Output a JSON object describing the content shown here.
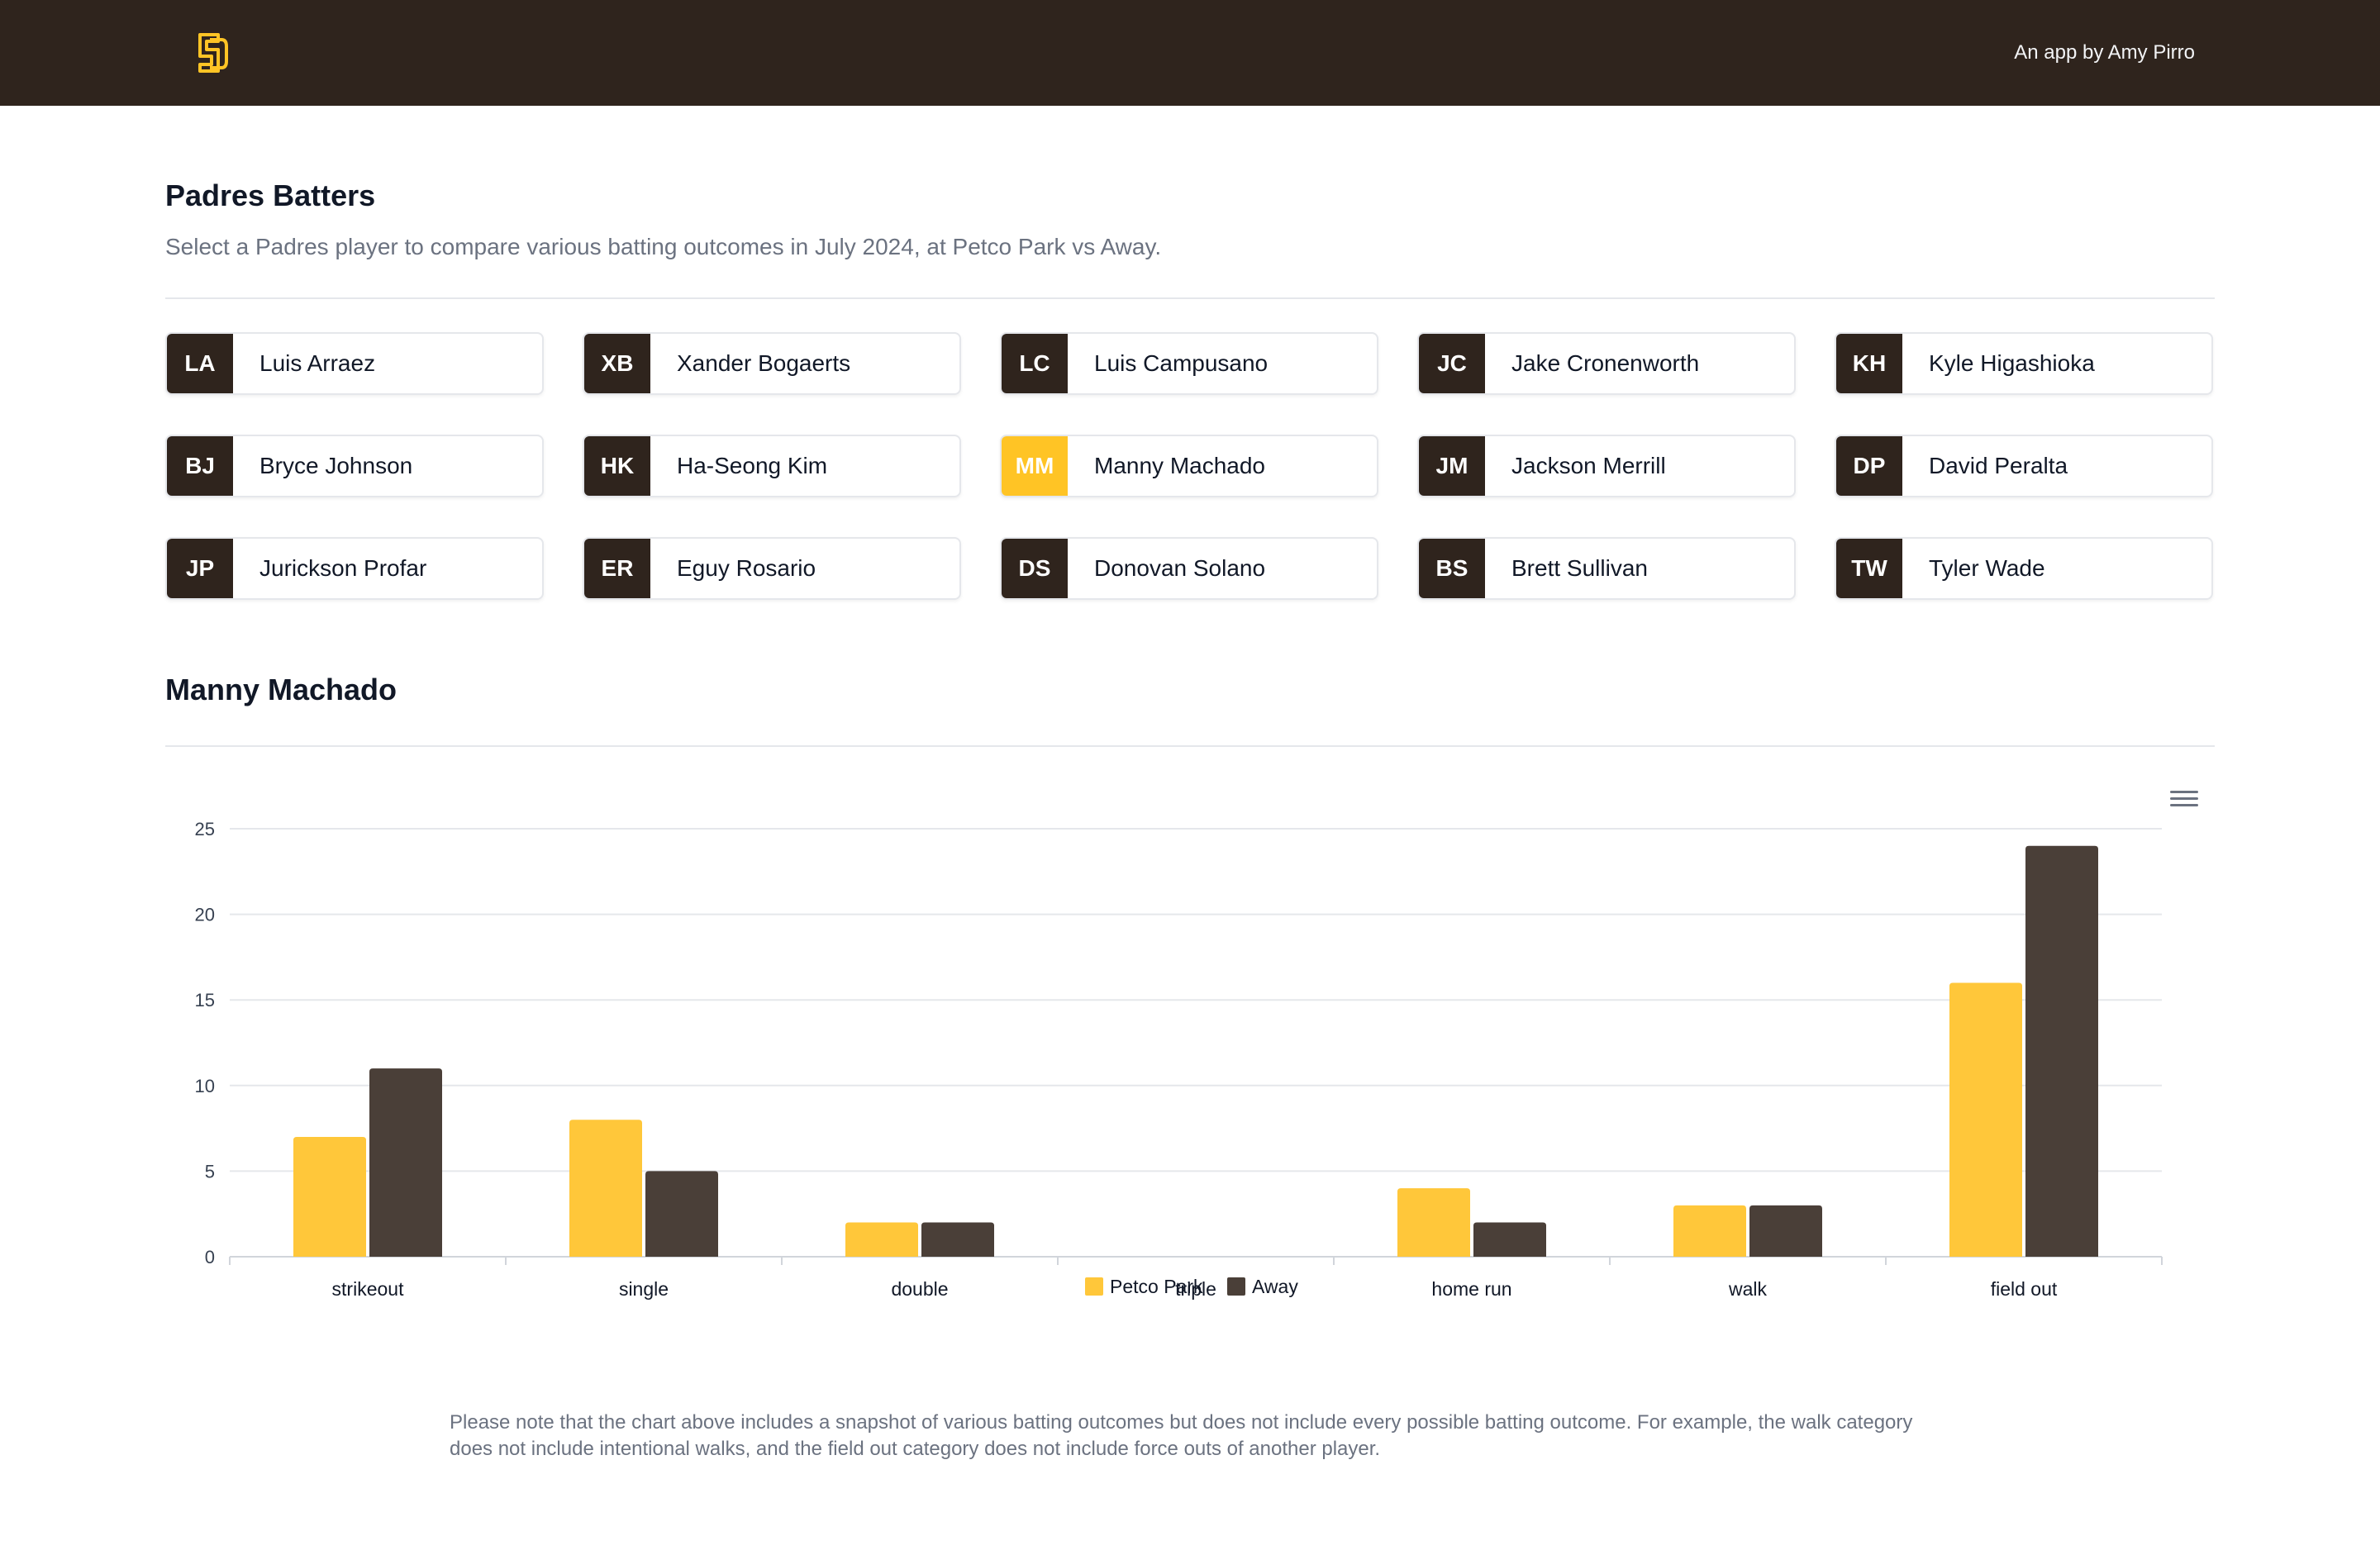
{
  "header": {
    "logo_icon": "sd-monogram-icon",
    "byline": "An app by Amy Pirro"
  },
  "batters": {
    "title": "Padres Batters",
    "description": "Select a Padres player to compare various batting outcomes in July 2024, at Petco Park vs Away.",
    "players": [
      {
        "initials": "LA",
        "name": "Luis Arraez",
        "selected": false
      },
      {
        "initials": "XB",
        "name": "Xander Bogaerts",
        "selected": false
      },
      {
        "initials": "LC",
        "name": "Luis Campusano",
        "selected": false
      },
      {
        "initials": "JC",
        "name": "Jake Cronenworth",
        "selected": false
      },
      {
        "initials": "KH",
        "name": "Kyle Higashioka",
        "selected": false
      },
      {
        "initials": "BJ",
        "name": "Bryce Johnson",
        "selected": false
      },
      {
        "initials": "HK",
        "name": "Ha-Seong Kim",
        "selected": false
      },
      {
        "initials": "MM",
        "name": "Manny Machado",
        "selected": true
      },
      {
        "initials": "JM",
        "name": "Jackson Merrill",
        "selected": false
      },
      {
        "initials": "DP",
        "name": "David Peralta",
        "selected": false
      },
      {
        "initials": "JP",
        "name": "Jurickson Profar",
        "selected": false
      },
      {
        "initials": "ER",
        "name": "Eguy Rosario",
        "selected": false
      },
      {
        "initials": "DS",
        "name": "Donovan Solano",
        "selected": false
      },
      {
        "initials": "BS",
        "name": "Brett Sullivan",
        "selected": false
      },
      {
        "initials": "TW",
        "name": "Tyler Wade",
        "selected": false
      }
    ]
  },
  "selected_player": {
    "title": "Manny Machado",
    "menu_icon": "hamburger-menu-icon"
  },
  "colors": {
    "brand_brown": "#2f241d",
    "brand_gold": "#ffc425",
    "petco": "#ffc73a",
    "away": "#4a3f38"
  },
  "chart_data": {
    "type": "bar",
    "categories": [
      "strikeout",
      "single",
      "double",
      "triple",
      "home run",
      "walk",
      "field out"
    ],
    "series": [
      {
        "name": "Petco Park",
        "values": [
          7,
          8,
          2,
          0,
          4,
          3,
          16
        ],
        "color": "#ffc73a"
      },
      {
        "name": "Away",
        "values": [
          11,
          5,
          2,
          0,
          2,
          3,
          24
        ],
        "color": "#4a3f38"
      }
    ],
    "yticks": [
      "0",
      "5",
      "10",
      "15",
      "20",
      "25"
    ],
    "ylim": [
      0,
      25
    ],
    "grid": true,
    "legend": "bottom-center"
  },
  "note": "Please note that the chart above includes a snapshot of various batting outcomes but does not include every possible batting outcome. For example, the walk category does not include intentional walks, and the field out category does not include force outs of another player."
}
